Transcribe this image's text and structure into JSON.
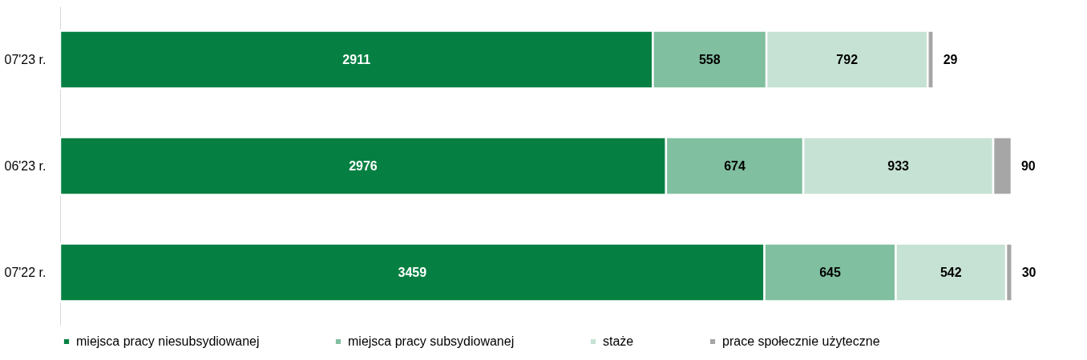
{
  "chart_data": {
    "type": "bar",
    "orientation": "horizontal",
    "stacked": true,
    "categories": [
      "07'23 r.",
      "06'23 r.",
      "07'22 r."
    ],
    "tick_labels": "y",
    "data_labels": true,
    "legend": "bottom",
    "series": [
      {
        "name": "miejsca pracy niesubsydiowanej",
        "color": "#068042",
        "values": [
          2911,
          2976,
          3459
        ]
      },
      {
        "name": "miejsca pracy subsydiowanej",
        "color": "#80bf9f",
        "values": [
          558,
          674,
          645
        ]
      },
      {
        "name": "staże",
        "color": "#c6e2d4",
        "values": [
          792,
          933,
          542
        ]
      },
      {
        "name": "prace społecznie użyteczne",
        "color": "#a6a6a6",
        "values": [
          29,
          90,
          30
        ]
      }
    ]
  }
}
